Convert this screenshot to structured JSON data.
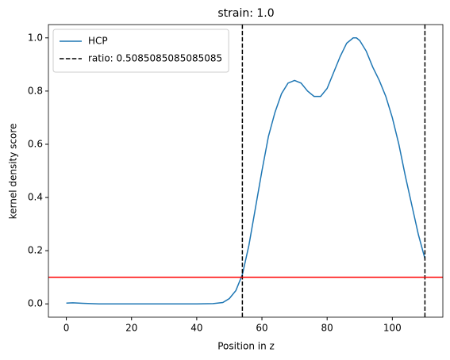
{
  "chart_data": {
    "type": "line",
    "title": "strain: 1.0",
    "xlabel": "Position in z",
    "ylabel": "kernel density score",
    "x": [
      0,
      2,
      5,
      10,
      20,
      30,
      40,
      45,
      48,
      50,
      52,
      54,
      56,
      58,
      60,
      62,
      64,
      66,
      68,
      70,
      72,
      74,
      76,
      78,
      80,
      82,
      84,
      86,
      88,
      89,
      90,
      92,
      94,
      96,
      98,
      100,
      102,
      104,
      106,
      108,
      110
    ],
    "series": [
      {
        "name": "HCP",
        "color": "#1f77b4",
        "values": [
          0.003,
          0.004,
          0.002,
          0.0,
          0.0,
          0.0,
          0.0,
          0.001,
          0.005,
          0.02,
          0.05,
          0.11,
          0.22,
          0.36,
          0.5,
          0.63,
          0.72,
          0.79,
          0.83,
          0.84,
          0.83,
          0.8,
          0.78,
          0.78,
          0.81,
          0.87,
          0.93,
          0.98,
          1.0,
          1.0,
          0.99,
          0.95,
          0.89,
          0.84,
          0.78,
          0.7,
          0.6,
          0.48,
          0.37,
          0.26,
          0.17
        ]
      }
    ],
    "vlines": [
      {
        "name": "ratio: 0.5085085085085085",
        "x": 54,
        "color": "#000000"
      },
      {
        "x": 110,
        "color": "#000000"
      }
    ],
    "hlines": [
      {
        "y": 0.1,
        "color": "#ff0000"
      }
    ],
    "xlim": [
      -5.5,
      115.5
    ],
    "ylim": [
      -0.05,
      1.05
    ],
    "xticks": [
      0,
      20,
      40,
      60,
      80,
      100
    ],
    "yticks": [
      {
        "value": 0,
        "label": "0.0"
      },
      0.2,
      0.4,
      0.6,
      0.8,
      {
        "value": 1,
        "label": "1.0"
      }
    ],
    "legend": "upper left"
  }
}
